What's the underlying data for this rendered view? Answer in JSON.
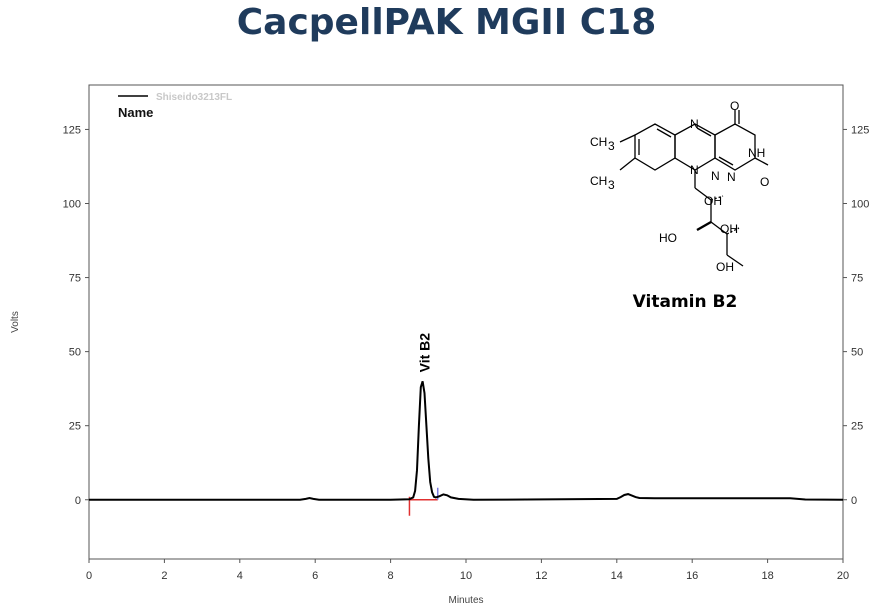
{
  "title": "CacpellPAK MGII C18",
  "chart_data": {
    "type": "line",
    "xlabel": "Minutes",
    "ylabel": "Volts",
    "xlim": [
      0,
      20
    ],
    "ylim": [
      -20,
      140
    ],
    "xticks": [
      0,
      2,
      4,
      6,
      8,
      10,
      12,
      14,
      16,
      18,
      20
    ],
    "yticks": [
      0,
      25,
      50,
      75,
      100,
      125
    ],
    "grid": false,
    "legend": {
      "position": "top-left",
      "entry": "Shiseido3213FL",
      "header": "Name"
    },
    "series": [
      {
        "name": "Shiseido3213FL",
        "color": "#000000",
        "x": [
          0,
          5.6,
          5.75,
          5.85,
          5.95,
          6.1,
          8.0,
          8.5,
          8.6,
          8.65,
          8.7,
          8.75,
          8.8,
          8.85,
          8.9,
          8.95,
          9.0,
          9.05,
          9.1,
          9.15,
          9.2,
          9.3,
          9.4,
          9.5,
          9.6,
          9.8,
          10.2,
          14.0,
          14.1,
          14.2,
          14.3,
          14.4,
          14.5,
          14.6,
          15.0,
          18.6,
          19.0,
          20.0
        ],
        "y": [
          0,
          0,
          0.3,
          0.6,
          0.3,
          0,
          0,
          0.2,
          0.8,
          3,
          10,
          25,
          38,
          40,
          36,
          25,
          14,
          6,
          2.5,
          1,
          0.8,
          1.2,
          1.8,
          1.5,
          0.8,
          0.3,
          0,
          0.3,
          0.9,
          1.6,
          1.9,
          1.4,
          0.9,
          0.6,
          0.5,
          0.5,
          0.1,
          0
        ]
      }
    ],
    "annotations": [
      {
        "text": "Vit B2",
        "x": 8.9,
        "y": 43,
        "rotation": -90
      }
    ],
    "baseline_marker": {
      "x": [
        8.5,
        9.25
      ],
      "y": 0,
      "color": "#e03030"
    },
    "inset": {
      "caption": "Vitamin B2",
      "labels": [
        "CH",
        "3",
        "CH",
        "3",
        "N",
        "N",
        "N",
        "O",
        "NH",
        "N",
        "O",
        "OH",
        "HO",
        "OH",
        "OH"
      ]
    }
  }
}
